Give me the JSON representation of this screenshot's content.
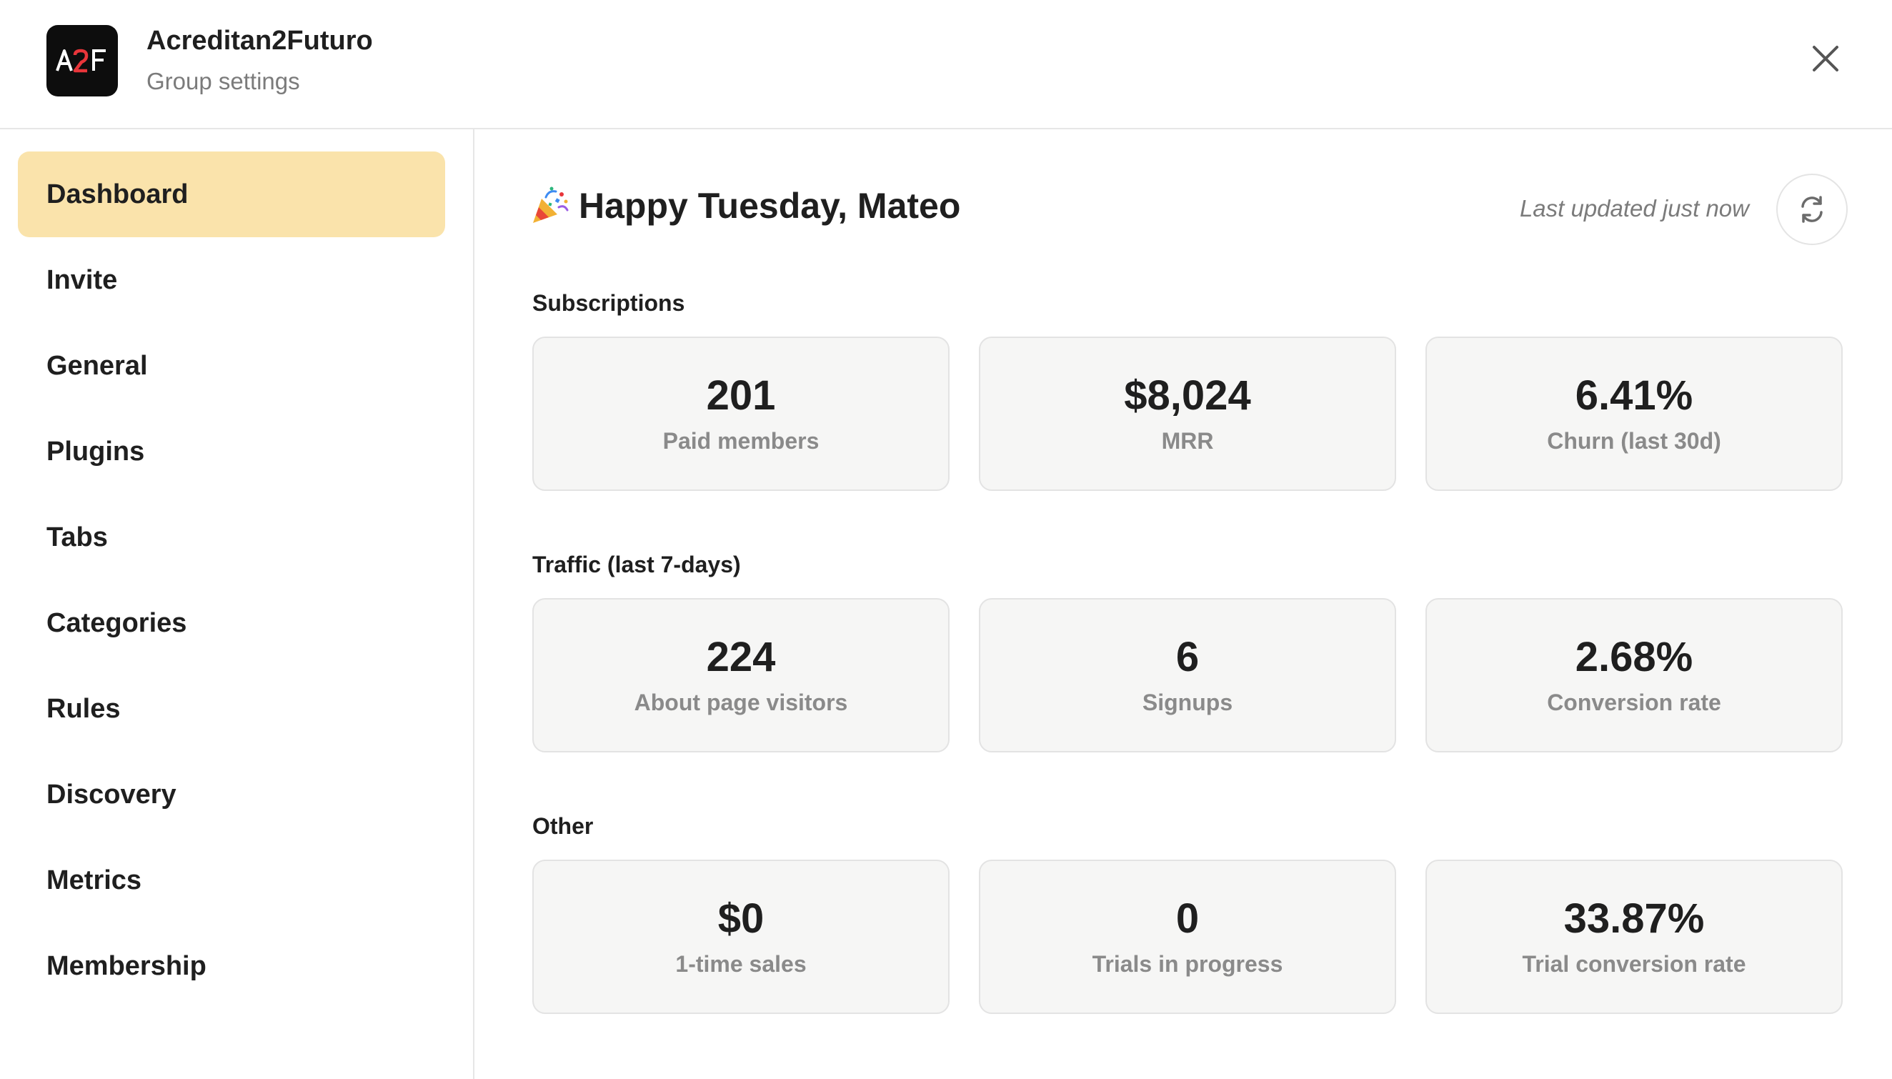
{
  "header": {
    "logo_text": "A2F",
    "group_name": "Acreditan2Futuro",
    "subtitle": "Group settings",
    "close_icon": "close-icon"
  },
  "sidebar": {
    "items": [
      {
        "label": "Dashboard",
        "active": true
      },
      {
        "label": "Invite"
      },
      {
        "label": "General"
      },
      {
        "label": "Plugins"
      },
      {
        "label": "Tabs"
      },
      {
        "label": "Categories"
      },
      {
        "label": "Rules"
      },
      {
        "label": "Discovery"
      },
      {
        "label": "Metrics"
      },
      {
        "label": "Membership"
      }
    ]
  },
  "main": {
    "greeting_icon": "party-popper-icon",
    "greeting": "Happy Tuesday, Mateo",
    "last_updated": "Last updated just now",
    "refresh_icon": "refresh-icon",
    "sections": [
      {
        "title": "Subscriptions",
        "cards": [
          {
            "value": "201",
            "label": "Paid members"
          },
          {
            "value": "$8,024",
            "label": "MRR"
          },
          {
            "value": "6.41%",
            "label": "Churn (last 30d)"
          }
        ]
      },
      {
        "title": "Traffic (last 7-days)",
        "cards": [
          {
            "value": "224",
            "label": "About page visitors"
          },
          {
            "value": "6",
            "label": "Signups"
          },
          {
            "value": "2.68%",
            "label": "Conversion rate"
          }
        ]
      },
      {
        "title": "Other",
        "cards": [
          {
            "value": "$0",
            "label": "1-time sales"
          },
          {
            "value": "0",
            "label": "Trials in progress"
          },
          {
            "value": "33.87%",
            "label": "Trial conversion rate"
          }
        ]
      }
    ]
  },
  "colors": {
    "active_nav_bg": "#fae3ab",
    "card_bg": "#f6f6f5",
    "logo_accent": "#e8353a"
  }
}
